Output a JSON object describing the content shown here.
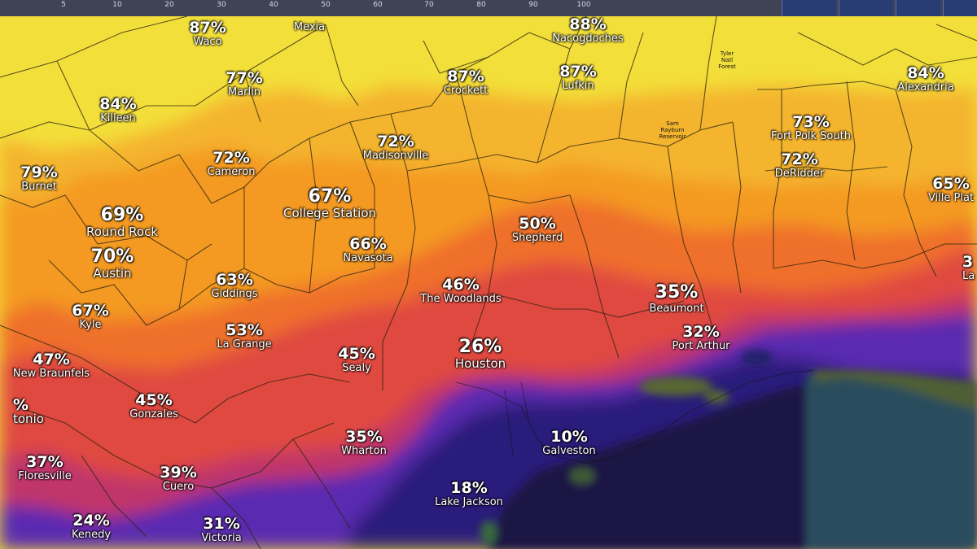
{
  "legend": {
    "ticks": [
      "5",
      "10",
      "20",
      "30",
      "40",
      "50",
      "60",
      "70",
      "80",
      "90",
      "100"
    ]
  },
  "colors": {
    "very_high": "#f3df3a",
    "high": "#f4b42f",
    "medium_high": "#f49a22",
    "medium": "#ef6f2c",
    "medium_low": "#e0493f",
    "low": "#c0356a",
    "very_low": "#5a2bb0",
    "lowest": "#2a1a7a",
    "ocean": "#25485a",
    "land_marsh": "#4f5e34"
  },
  "cities": [
    {
      "pct": "87%",
      "name": "Waco"
    },
    {
      "pct": "",
      "name": "Mexia"
    },
    {
      "pct": "88%",
      "name": "Nacogdoches"
    },
    {
      "pct": "84%",
      "name": "Killeen"
    },
    {
      "pct": "77%",
      "name": "Marlin"
    },
    {
      "pct": "87%",
      "name": "Crockett"
    },
    {
      "pct": "87%",
      "name": "Lufkin"
    },
    {
      "pct": "84%",
      "name": "Alexandria"
    },
    {
      "pct": "79%",
      "name": "Burnet"
    },
    {
      "pct": "72%",
      "name": "Cameron"
    },
    {
      "pct": "72%",
      "name": "Madisonville"
    },
    {
      "pct": "73%",
      "name": "Fort Polk South"
    },
    {
      "pct": "72%",
      "name": "DeRidder"
    },
    {
      "pct": "65%",
      "name": "Ville Plat"
    },
    {
      "pct": "69%",
      "name": "Round Rock"
    },
    {
      "pct": "67%",
      "name": "College Station"
    },
    {
      "pct": "50%",
      "name": "Shepherd"
    },
    {
      "pct": "70%",
      "name": "Austin"
    },
    {
      "pct": "66%",
      "name": "Navasota"
    },
    {
      "pct": "63%",
      "name": "Giddings"
    },
    {
      "pct": "46%",
      "name": "The Woodlands"
    },
    {
      "pct": "35%",
      "name": "Beaumont"
    },
    {
      "pct": "67%",
      "name": "Kyle"
    },
    {
      "pct": "53%",
      "name": "La Grange"
    },
    {
      "pct": "32%",
      "name": "Port Arthur"
    },
    {
      "pct": "47%",
      "name": "New Braunfels"
    },
    {
      "pct": "45%",
      "name": "Sealy"
    },
    {
      "pct": "26%",
      "name": "Houston"
    },
    {
      "pct": "45%",
      "name": "Gonzales"
    },
    {
      "pct": "35%",
      "name": "Wharton"
    },
    {
      "pct": "10%",
      "name": "Galveston"
    },
    {
      "pct": "37%",
      "name": "Floresville"
    },
    {
      "pct": "39%",
      "name": "Cuero"
    },
    {
      "pct": "18%",
      "name": "Lake Jackson"
    },
    {
      "pct": "24%",
      "name": "Kenedy"
    },
    {
      "pct": "31%",
      "name": "Victoria"
    },
    {
      "pct": "%",
      "name": "tonio"
    },
    {
      "pct": "3",
      "name": "La"
    }
  ],
  "small_towns": [
    "Tyler\nNatl\nForest",
    "Sam\nRayburn\nReservoir"
  ]
}
